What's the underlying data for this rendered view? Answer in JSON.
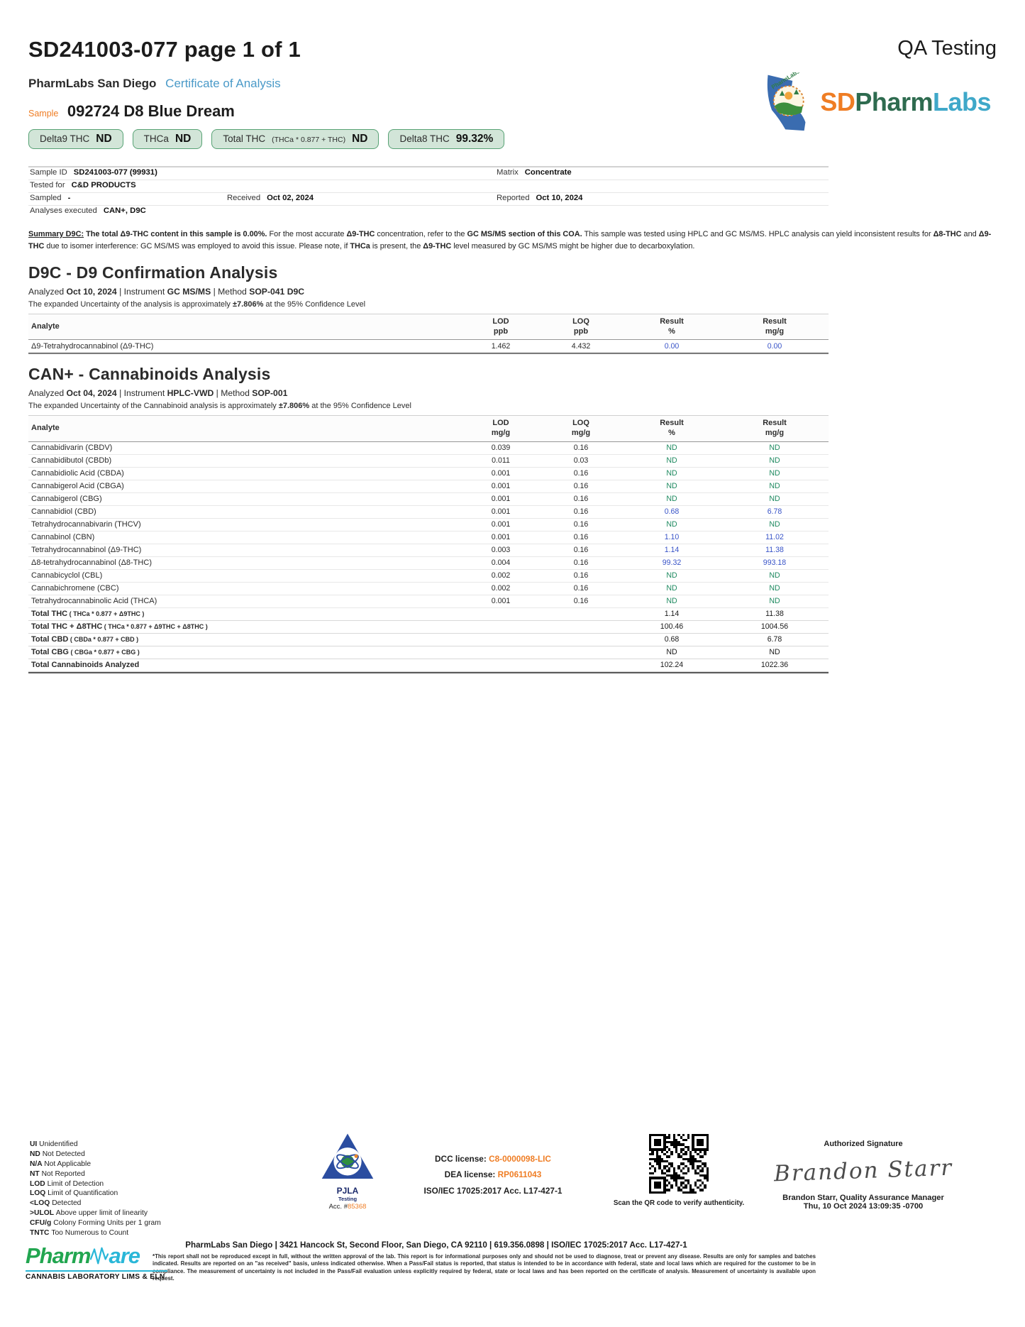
{
  "colors": {
    "accent_blue": "#3954c8",
    "result_green": "#1e8a60",
    "orange": "#ef7d24",
    "coa_blue": "#4a9ac8",
    "pill_green_bg": "#d2e5d8",
    "pill_green_border": "#57a274"
  },
  "header": {
    "doc_ref": "SD241003-077 page 1 of 1",
    "qa_label": "QA Testing",
    "lab_name": "PharmLabs San Diego",
    "coa_label": "Certificate of Analysis",
    "sample_label": "Sample",
    "sample_name": "092724 D8 Blue Dream",
    "logo": {
      "sd": "SD",
      "pharm": "Pharm",
      "labs": "Labs",
      "badge": "PharmLabs"
    }
  },
  "pills": [
    {
      "label": "Delta9 THC",
      "sub": "",
      "value": "ND"
    },
    {
      "label": "THCa",
      "sub": "",
      "value": "ND"
    },
    {
      "label": "Total THC",
      "sub": "(THCa * 0.877 + THC)",
      "value": "ND"
    },
    {
      "label": "Delta8 THC",
      "sub": "",
      "value": "99.32%"
    }
  ],
  "sample_info": {
    "sample_id_label": "Sample ID",
    "sample_id": "SD241003-077 (99931)",
    "matrix_label": "Matrix",
    "matrix": "Concentrate",
    "tested_for_label": "Tested for",
    "tested_for": "C&D PRODUCTS",
    "sampled_label": "Sampled",
    "sampled": "-",
    "received_label": "Received",
    "received": "Oct 02, 2024",
    "reported_label": "Reported",
    "reported": "Oct 10, 2024",
    "analyses_label": "Analyses executed",
    "analyses": "CAN+, D9C"
  },
  "summary": {
    "segments": [
      [
        "Summary D9C:",
        2
      ],
      [
        " ",
        0
      ],
      [
        "The total Δ9-THC content in this sample is 0.00%.",
        1
      ],
      [
        " For the most accurate ",
        0
      ],
      [
        "Δ9-THC",
        1
      ],
      [
        " concentration, refer to the ",
        0
      ],
      [
        "GC MS/MS section of this COA.",
        1
      ],
      [
        " This sample was tested using HPLC and GC MS/MS. HPLC analysis can yield inconsistent results for ",
        0
      ],
      [
        "Δ8-THC",
        1
      ],
      [
        " and ",
        0
      ],
      [
        "Δ9-THC",
        1
      ],
      [
        " due to isomer interference: GC MS/MS was employed to avoid this issue. Please note, if ",
        0
      ],
      [
        "THCa",
        1
      ],
      [
        " is present, the ",
        0
      ],
      [
        "Δ9-THC",
        1
      ],
      [
        " level measured by GC MS/MS might be higher due to decarboxylation.",
        0
      ]
    ]
  },
  "d9c": {
    "title": "D9C - D9 Confirmation Analysis",
    "meta": [
      [
        "Analyzed ",
        0
      ],
      [
        "Oct 10, 2024",
        1
      ],
      [
        "   |   Instrument ",
        0
      ],
      [
        "GC MS/MS",
        1
      ],
      [
        "   | Method ",
        0
      ],
      [
        "SOP-041 D9C",
        1
      ]
    ],
    "uncertainty": [
      [
        "The expanded Uncertainty of the analysis is approximately ",
        0
      ],
      [
        "±7.806%",
        1
      ],
      [
        " at the 95% Confidence Level",
        0
      ]
    ],
    "header": [
      [
        "Analyte",
        ""
      ],
      [
        "LOD",
        "ppb"
      ],
      [
        "LOQ",
        "ppb"
      ],
      [
        "Result",
        "%"
      ],
      [
        "Result",
        "mg/g"
      ]
    ],
    "rows": [
      {
        "a": "Δ9-Tetrahydrocannabinol (Δ9-THC)",
        "f": "",
        "lod": "1.462",
        "loq": "4.432",
        "p": "0.00",
        "m": "0.00",
        "t": 0
      }
    ]
  },
  "can": {
    "title": "CAN+ - Cannabinoids Analysis",
    "meta": [
      [
        "Analyzed ",
        0
      ],
      [
        "Oct 04, 2024",
        1
      ],
      [
        "   |   Instrument ",
        0
      ],
      [
        "HPLC-VWD",
        1
      ],
      [
        "   | Method ",
        0
      ],
      [
        "SOP-001",
        1
      ]
    ],
    "uncertainty": [
      [
        "The expanded Uncertainty of the Cannabinoid analysis is approximately ",
        0
      ],
      [
        "±7.806%",
        1
      ],
      [
        " at the 95% Confidence Level",
        0
      ]
    ],
    "header": [
      [
        "Analyte",
        ""
      ],
      [
        "LOD",
        "mg/g"
      ],
      [
        "LOQ",
        "mg/g"
      ],
      [
        "Result",
        "%"
      ],
      [
        "Result",
        "mg/g"
      ]
    ],
    "rows": [
      {
        "a": "Cannabidivarin (CBDV)",
        "f": "",
        "lod": "0.039",
        "loq": "0.16",
        "p": "ND",
        "m": "ND",
        "t": 0
      },
      {
        "a": "Cannabidibutol (CBDb)",
        "f": "",
        "lod": "0.011",
        "loq": "0.03",
        "p": "ND",
        "m": "ND",
        "t": 0
      },
      {
        "a": "Cannabidiolic Acid (CBDA)",
        "f": "",
        "lod": "0.001",
        "loq": "0.16",
        "p": "ND",
        "m": "ND",
        "t": 0
      },
      {
        "a": "Cannabigerol Acid (CBGA)",
        "f": "",
        "lod": "0.001",
        "loq": "0.16",
        "p": "ND",
        "m": "ND",
        "t": 0
      },
      {
        "a": "Cannabigerol (CBG)",
        "f": "",
        "lod": "0.001",
        "loq": "0.16",
        "p": "ND",
        "m": "ND",
        "t": 0
      },
      {
        "a": "Cannabidiol (CBD)",
        "f": "",
        "lod": "0.001",
        "loq": "0.16",
        "p": "0.68",
        "m": "6.78",
        "t": 0
      },
      {
        "a": "Tetrahydrocannabivarin (THCV)",
        "f": "",
        "lod": "0.001",
        "loq": "0.16",
        "p": "ND",
        "m": "ND",
        "t": 0
      },
      {
        "a": "Cannabinol (CBN)",
        "f": "",
        "lod": "0.001",
        "loq": "0.16",
        "p": "1.10",
        "m": "11.02",
        "t": 0
      },
      {
        "a": "Tetrahydrocannabinol (Δ9-THC)",
        "f": "",
        "lod": "0.003",
        "loq": "0.16",
        "p": "1.14",
        "m": "11.38",
        "t": 0
      },
      {
        "a": "Δ8-tetrahydrocannabinol (Δ8-THC)",
        "f": "",
        "lod": "0.004",
        "loq": "0.16",
        "p": "99.32",
        "m": "993.18",
        "t": 0
      },
      {
        "a": "Cannabicyclol (CBL)",
        "f": "",
        "lod": "0.002",
        "loq": "0.16",
        "p": "ND",
        "m": "ND",
        "t": 0
      },
      {
        "a": "Cannabichromene (CBC)",
        "f": "",
        "lod": "0.002",
        "loq": "0.16",
        "p": "ND",
        "m": "ND",
        "t": 0
      },
      {
        "a": "Tetrahydrocannabinolic Acid (THCA)",
        "f": "",
        "lod": "0.001",
        "loq": "0.16",
        "p": "ND",
        "m": "ND",
        "t": 0
      },
      {
        "a": "Total THC",
        "f": "( THCa * 0.877 + Δ9THC )",
        "lod": "",
        "loq": "",
        "p": "1.14",
        "m": "11.38",
        "t": 1
      },
      {
        "a": "Total THC + Δ8THC",
        "f": "( THCa * 0.877 + Δ9THC + Δ8THC )",
        "lod": "",
        "loq": "",
        "p": "100.46",
        "m": "1004.56",
        "t": 1
      },
      {
        "a": "Total CBD",
        "f": "( CBDa * 0.877 + CBD )",
        "lod": "",
        "loq": "",
        "p": "0.68",
        "m": "6.78",
        "t": 1
      },
      {
        "a": "Total CBG",
        "f": "( CBGa * 0.877 + CBG )",
        "lod": "",
        "loq": "",
        "p": "ND",
        "m": "ND",
        "t": 1
      },
      {
        "a": "Total Cannabinoids Analyzed",
        "f": "",
        "lod": "",
        "loq": "",
        "p": "102.24",
        "m": "1022.36",
        "t": 1
      }
    ]
  },
  "footer": {
    "legend": [
      [
        "UI",
        "Unidentified"
      ],
      [
        "ND",
        "Not Detected"
      ],
      [
        "N/A",
        "Not Applicable"
      ],
      [
        "NT",
        "Not Reported"
      ],
      [
        "LOD",
        "Limit of Detection"
      ],
      [
        "LOQ",
        "Limit of Quantification"
      ],
      [
        "<LOQ",
        "Detected"
      ],
      [
        ">ULOL",
        "Above upper limit of linearity"
      ],
      [
        "CFU/g",
        "Colony Forming Units per 1 gram"
      ],
      [
        "TNTC",
        "Too Numerous to Count"
      ]
    ],
    "pjla": {
      "name": "PJLA",
      "sub": "Testing",
      "acc_label": "Acc. #",
      "acc": "85368"
    },
    "licenses": {
      "dcc_label": "DCC license: ",
      "dcc": "C8-0000098-LIC",
      "dea_label": "DEA license: ",
      "dea": "RP0611043",
      "iso": "ISO/IEC 17025:2017 Acc. L17-427-1"
    },
    "qr_caption": "Scan the QR code to verify authenticity.",
    "signature": {
      "label": "Authorized Signature",
      "name_script": "Brandon Starr",
      "name_line": "Brandon Starr, Quality Assurance Manager",
      "date_line": "Thu, 10 Oct 2024 13:09:35 -0700"
    },
    "address": "PharmLabs San Diego | 3421 Hancock St, Second Floor, San Diego, CA 92110 | 619.356.0898 | ISO/IEC 17025:2017 Acc. L17-427-1",
    "disclaimer": "*This report shall not be reproduced except in full, without the written approval of the lab. This report is for informational purposes only and should not be used to diagnose, treat or prevent any disease. Results are only for samples and batches indicated. Results are reported on an \"as received\" basis, unless indicated otherwise. When a Pass/Fail status is reported, that status is intended to be in accordance with federal, state and local laws which are required for the customer to be in compliance. The measurement of uncertainty is not included in the Pass/Fail evaluation unless explicitly required by federal, state or local laws and has been reported on the certificate of analysis. Measurement of uncertainty is available upon request.",
    "pharmware": {
      "pharm": "Pharm",
      "ware": "are",
      "tagline": "CANNABIS LABORATORY LIMS & ELN"
    }
  }
}
